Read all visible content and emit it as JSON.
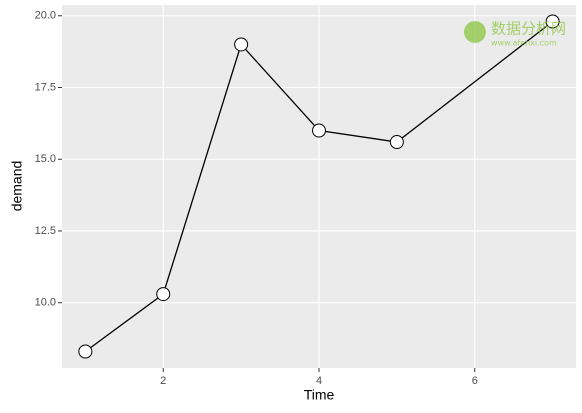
{
  "chart_data": {
    "type": "line",
    "x_label": "Time",
    "y_label": "demand",
    "x": [
      1,
      2,
      3,
      4,
      5,
      7
    ],
    "series": [
      {
        "color": "#000000",
        "values": [
          8.3,
          10.3,
          19.0,
          16.0,
          15.6,
          19.8
        ]
      }
    ],
    "xlim": [
      0.7,
      7.3
    ],
    "ylim": [
      7.725,
      20.375
    ],
    "xticks": [
      2,
      4,
      6
    ],
    "yticks": [
      {
        "value": 10,
        "label": "10.0"
      },
      {
        "value": 12.5,
        "label": "12.5"
      },
      {
        "value": 15,
        "label": "15.0"
      },
      {
        "value": 17.5,
        "label": "17.5"
      },
      {
        "value": 20,
        "label": "20.0"
      }
    ],
    "grid": true,
    "watermark": {
      "text": "数据分析网",
      "url": "www.afenxi.com"
    }
  }
}
